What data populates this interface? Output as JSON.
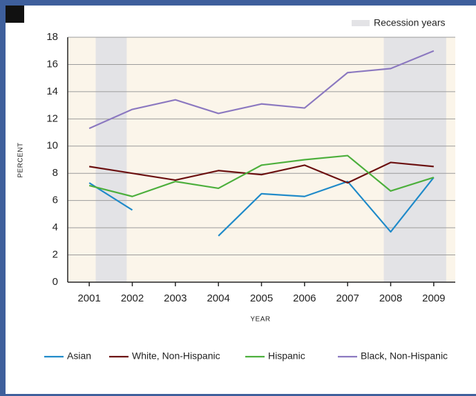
{
  "chart_data": {
    "type": "line",
    "x_label": "YEAR",
    "y_label": "PERCENT",
    "x": [
      2001,
      2002,
      2003,
      2004,
      2005,
      2006,
      2007,
      2008,
      2009
    ],
    "series": [
      {
        "name": "Asian",
        "color": "#1f8ac9",
        "values": [
          7.3,
          5.3,
          null,
          3.4,
          6.5,
          6.3,
          7.4,
          3.7,
          7.7
        ]
      },
      {
        "name": "White, Non-Hispanic",
        "color": "#6b1010",
        "values": [
          8.5,
          8.0,
          7.5,
          8.2,
          7.9,
          8.6,
          7.3,
          8.8,
          8.5
        ]
      },
      {
        "name": "Hispanic",
        "color": "#4caf3c",
        "values": [
          7.1,
          6.3,
          7.4,
          6.9,
          8.6,
          9.0,
          9.3,
          6.7,
          7.7
        ]
      },
      {
        "name": "Black, Non-Hispanic",
        "color": "#8b78c0",
        "values": [
          11.3,
          12.7,
          13.4,
          12.4,
          13.1,
          12.8,
          15.4,
          15.7,
          17.0
        ]
      }
    ],
    "shaded_regions": {
      "name": "Recession years",
      "color": "#e3e3e6",
      "ranges": [
        [
          2001.15,
          2001.87
        ],
        [
          2007.84,
          2009.29
        ]
      ]
    },
    "plot_background": "#fbf5ea",
    "xlim": [
      2000.5,
      2009.5
    ],
    "xticks": [
      2001,
      2002,
      2003,
      2004,
      2005,
      2006,
      2007,
      2008,
      2009
    ],
    "ylim": [
      0,
      18
    ],
    "yticks": [
      0,
      2,
      4,
      6,
      8,
      10,
      12,
      14,
      16,
      18
    ],
    "grid": true
  }
}
